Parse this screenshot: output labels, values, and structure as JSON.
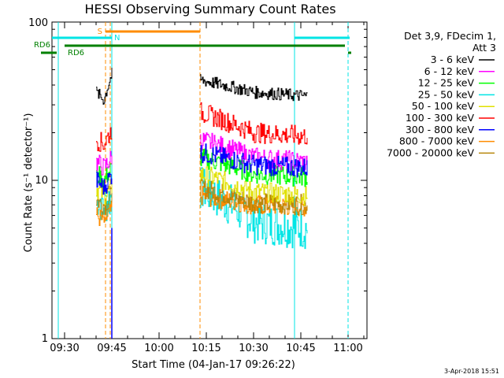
{
  "chart_data": {
    "type": "line",
    "title": "HESSI Observing Summary Count Rates",
    "xlabel": "Start Time (04-Jan-17 09:26:22)",
    "ylabel": "Count Rate (s⁻¹ detector⁻¹)",
    "yscale": "log",
    "ylim": [
      1,
      100
    ],
    "xlim": [
      "09:26",
      "11:06"
    ],
    "x_ticks": [
      "09:30",
      "09:45",
      "10:00",
      "10:15",
      "10:30",
      "10:45",
      "11:00"
    ],
    "y_ticks": [
      "1",
      "10",
      "100"
    ],
    "legend": {
      "header": [
        "Det 3,9, FDecim 1,",
        "Att 3"
      ],
      "placement": "right"
    },
    "series": [
      {
        "name": "3 - 6 keV",
        "color": "#000000",
        "seg1": [
          36,
          32,
          47
        ],
        "seg2": [
          43,
          36,
          34
        ]
      },
      {
        "name": "6 - 12 keV",
        "color": "#ff00ff",
        "seg1": [
          13,
          12,
          14
        ],
        "seg2": [
          18,
          14,
          13
        ]
      },
      {
        "name": "12 - 25 keV",
        "color": "#00ff00",
        "seg1": [
          11,
          10,
          12
        ],
        "seg2": [
          14,
          11,
          10.5
        ]
      },
      {
        "name": "25 - 50 keV",
        "color": "#00e5e5",
        "seg1": [
          8,
          7,
          8
        ],
        "seg2": [
          9,
          5.5,
          5
        ]
      },
      {
        "name": "50 - 100 keV",
        "color": "#e0e000",
        "seg1": [
          9,
          8,
          9
        ],
        "seg2": [
          11,
          8.5,
          8
        ]
      },
      {
        "name": "100 - 300 keV",
        "color": "#ff0000",
        "seg1": [
          18,
          17,
          21
        ],
        "seg2": [
          27,
          20,
          19
        ]
      },
      {
        "name": "300 - 800 keV",
        "color": "#0000ff",
        "seg1": [
          10,
          9,
          11
        ],
        "seg2": [
          15,
          12.5,
          12
        ]
      },
      {
        "name": "800 - 7000 keV",
        "color": "#ff8c00",
        "seg1": [
          6,
          5.5,
          6.5
        ],
        "seg2": [
          8,
          7,
          6.8
        ]
      },
      {
        "name": "7000 - 20000 keV",
        "color": "#b8860b",
        "seg1": [
          7.5,
          7,
          8
        ],
        "seg2": [
          9,
          7.2,
          7
        ]
      }
    ],
    "annotations": {
      "rd6": "RD6",
      "s": "S",
      "n": "N"
    },
    "footer_date": "3-Apr-2018 15:51"
  }
}
